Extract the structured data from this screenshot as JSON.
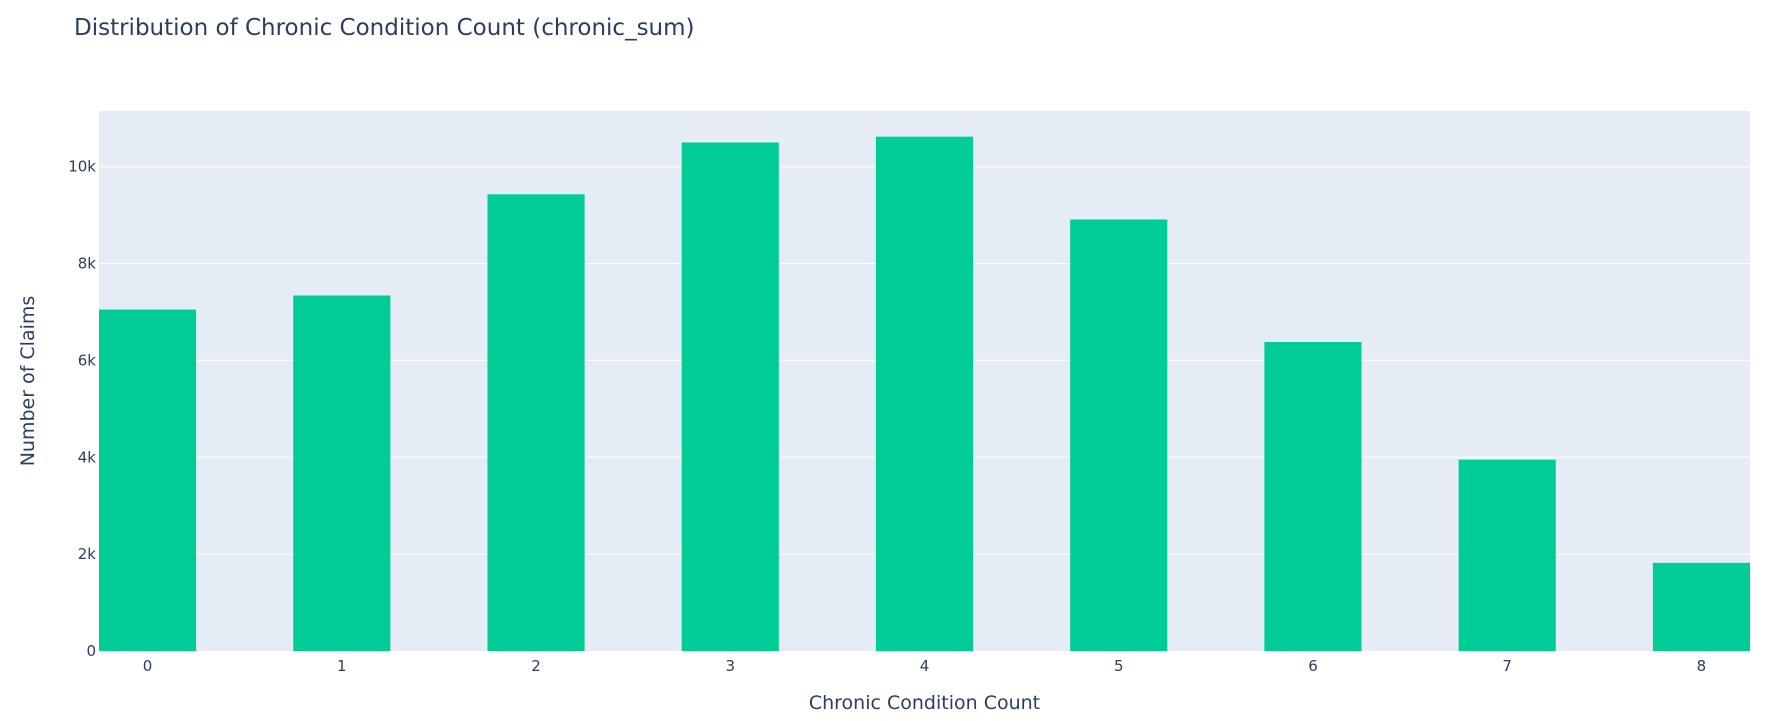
{
  "chart_data": {
    "type": "bar",
    "title": "Distribution of Chronic Condition Count (chronic_sum)",
    "xlabel": "Chronic Condition Count",
    "ylabel": "Number of Claims",
    "categories": [
      "0",
      "1",
      "2",
      "3",
      "4",
      "5",
      "6",
      "7",
      "8"
    ],
    "values": [
      7050,
      7340,
      9430,
      10500,
      10620,
      8910,
      6380,
      3950,
      1820
    ],
    "ylim": [
      0,
      11150
    ],
    "yticks": [
      0,
      2000,
      4000,
      6000,
      8000,
      10000
    ],
    "ytick_labels": [
      "0",
      "2k",
      "4k",
      "6k",
      "8k",
      "10k"
    ],
    "grid": true,
    "colors": {
      "bar": "#00cc96",
      "plot_bg": "#e5ecf6",
      "grid": "#ffffff",
      "text": "#2a3f5f"
    }
  }
}
